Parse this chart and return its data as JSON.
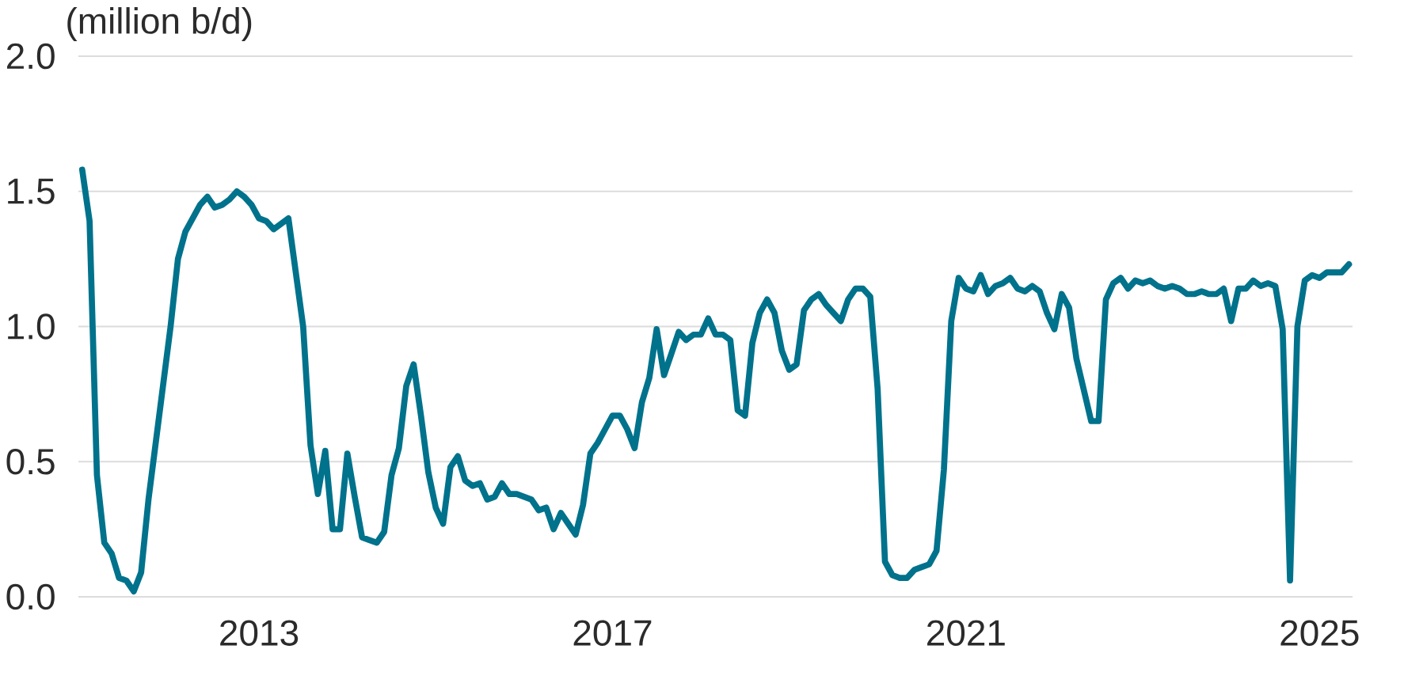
{
  "chart_data": {
    "type": "line",
    "ylabel": "(million b/d)",
    "x": [
      "2011-01",
      "2011-02",
      "2011-03",
      "2011-04",
      "2011-05",
      "2011-06",
      "2011-07",
      "2011-08",
      "2011-09",
      "2011-10",
      "2012-01",
      "2012-02",
      "2012-03",
      "2012-04",
      "2012-05",
      "2012-06",
      "2012-07",
      "2012-08",
      "2012-09",
      "2012-10",
      "2012-11",
      "2012-12",
      "2013-01",
      "2013-02",
      "2013-03",
      "2013-04",
      "2013-05",
      "2013-06",
      "2013-07",
      "2013-08",
      "2013-09",
      "2013-10",
      "2013-11",
      "2013-12",
      "2014-01",
      "2014-02",
      "2014-03",
      "2014-04",
      "2014-05",
      "2014-06",
      "2014-07",
      "2014-08",
      "2014-09",
      "2014-10",
      "2014-11",
      "2014-12",
      "2015-01",
      "2015-02",
      "2015-03",
      "2015-04",
      "2015-05",
      "2015-06",
      "2015-07",
      "2015-08",
      "2015-09",
      "2015-10",
      "2015-11",
      "2015-12",
      "2016-01",
      "2016-02",
      "2016-03",
      "2016-04",
      "2016-05",
      "2016-06",
      "2016-07",
      "2016-08",
      "2016-09",
      "2016-10",
      "2016-11",
      "2016-12",
      "2017-01",
      "2017-02",
      "2017-03",
      "2017-04",
      "2017-05",
      "2017-06",
      "2017-07",
      "2017-08",
      "2017-09",
      "2017-10",
      "2017-11",
      "2017-12",
      "2018-01",
      "2018-02",
      "2018-03",
      "2018-04",
      "2018-05",
      "2018-06",
      "2018-07",
      "2018-08",
      "2018-09",
      "2018-10",
      "2018-11",
      "2018-12",
      "2019-01",
      "2019-02",
      "2019-03",
      "2019-04",
      "2019-05",
      "2019-06",
      "2019-07",
      "2019-08",
      "2019-09",
      "2019-10",
      "2019-11",
      "2019-12",
      "2020-01",
      "2020-02",
      "2020-03",
      "2020-04",
      "2020-05",
      "2020-06",
      "2020-07",
      "2020-08",
      "2020-09",
      "2020-10",
      "2020-11",
      "2020-12",
      "2021-01",
      "2021-02",
      "2021-03",
      "2021-04",
      "2021-05",
      "2021-06",
      "2021-07",
      "2021-08",
      "2021-09",
      "2021-10",
      "2021-11",
      "2021-12",
      "2022-01",
      "2022-02",
      "2022-03",
      "2022-04",
      "2022-06",
      "2022-07",
      "2022-08",
      "2022-09",
      "2022-10",
      "2022-11",
      "2022-12",
      "2023-01",
      "2023-02",
      "2023-03",
      "2023-04",
      "2023-05",
      "2023-06",
      "2023-07",
      "2023-08",
      "2023-09",
      "2023-10",
      "2023-11",
      "2023-12",
      "2024-01",
      "2024-02",
      "2024-03",
      "2024-04",
      "2024-05",
      "2024-06",
      "2024-07",
      "2024-08",
      "2024-09",
      "2024-10",
      "2024-11",
      "2024-12",
      "2025-01",
      "2025-02",
      "2025-03",
      "2025-04",
      "2025-05"
    ],
    "values": [
      1.58,
      1.39,
      0.45,
      0.2,
      0.16,
      0.07,
      0.06,
      0.02,
      0.09,
      0.36,
      1.0,
      1.25,
      1.35,
      1.4,
      1.45,
      1.48,
      1.44,
      1.45,
      1.47,
      1.5,
      1.48,
      1.45,
      1.4,
      1.39,
      1.36,
      1.38,
      1.4,
      1.2,
      1.0,
      0.56,
      0.38,
      0.54,
      0.25,
      0.25,
      0.53,
      0.37,
      0.22,
      0.21,
      0.2,
      0.24,
      0.45,
      0.55,
      0.78,
      0.86,
      0.67,
      0.46,
      0.33,
      0.27,
      0.48,
      0.52,
      0.43,
      0.41,
      0.42,
      0.36,
      0.37,
      0.42,
      0.38,
      0.38,
      0.37,
      0.36,
      0.32,
      0.33,
      0.25,
      0.31,
      0.27,
      0.23,
      0.34,
      0.53,
      0.57,
      0.62,
      0.67,
      0.67,
      0.62,
      0.55,
      0.72,
      0.81,
      0.99,
      0.82,
      0.9,
      0.98,
      0.95,
      0.97,
      0.97,
      1.03,
      0.97,
      0.97,
      0.95,
      0.69,
      0.67,
      0.94,
      1.05,
      1.1,
      1.05,
      0.91,
      0.84,
      0.86,
      1.06,
      1.1,
      1.12,
      1.08,
      1.05,
      1.02,
      1.1,
      1.14,
      1.14,
      1.11,
      0.77,
      0.13,
      0.08,
      0.07,
      0.07,
      0.1,
      0.11,
      0.12,
      0.17,
      0.47,
      1.02,
      1.18,
      1.14,
      1.13,
      1.19,
      1.12,
      1.15,
      1.16,
      1.18,
      1.14,
      1.13,
      1.15,
      1.13,
      1.05,
      0.99,
      1.12,
      1.07,
      0.88,
      0.65,
      0.65,
      1.1,
      1.16,
      1.18,
      1.14,
      1.17,
      1.16,
      1.17,
      1.15,
      1.14,
      1.15,
      1.14,
      1.12,
      1.12,
      1.13,
      1.12,
      1.12,
      1.14,
      1.02,
      1.14,
      1.14,
      1.17,
      1.15,
      1.16,
      1.15,
      0.99,
      0.06,
      1.0,
      1.17,
      1.19,
      1.18,
      1.2,
      1.2,
      1.2,
      1.23
    ],
    "color": "#00728c",
    "xlim": [
      "2010-12-16",
      "2025-05-16"
    ],
    "ylim": [
      0,
      2
    ],
    "xticks": [
      "2013",
      "2017",
      "2021",
      "2025"
    ],
    "yticks": [
      {
        "value": 0,
        "label": "0.0"
      },
      0.5,
      {
        "value": 1,
        "label": "1.0"
      },
      1.5,
      {
        "value": 2,
        "label": "2.0"
      }
    ],
    "grid": "y"
  }
}
